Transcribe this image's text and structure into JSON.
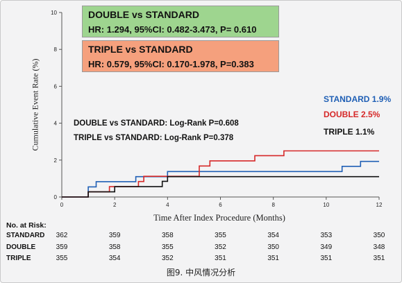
{
  "chart_data": {
    "type": "line",
    "subtype": "kaplan-meier-step",
    "xlabel": "Time After Index Procedure (Months)",
    "ylabel": "Cumulative Event Rate (%)",
    "xlim": [
      0,
      12
    ],
    "ylim": [
      0,
      10
    ],
    "x_ticks": [
      "0",
      "2",
      "4",
      "6",
      "8",
      "10",
      "12"
    ],
    "y_ticks": [
      "0",
      "2",
      "4",
      "6",
      "8",
      "10"
    ],
    "grid": false,
    "legend_position": "right",
    "series": [
      {
        "name": "STANDARD",
        "color": "#1f5fb5",
        "points": [
          [
            0,
            0
          ],
          [
            1.0,
            0
          ],
          [
            1.0,
            0.55
          ],
          [
            1.3,
            0.55
          ],
          [
            1.3,
            0.83
          ],
          [
            2.8,
            0.83
          ],
          [
            2.8,
            1.1
          ],
          [
            4.0,
            1.1
          ],
          [
            4.0,
            1.38
          ],
          [
            10.6,
            1.38
          ],
          [
            10.6,
            1.66
          ],
          [
            11.3,
            1.66
          ],
          [
            11.3,
            1.93
          ],
          [
            12,
            1.93
          ]
        ]
      },
      {
        "name": "DOUBLE",
        "color": "#d62828",
        "points": [
          [
            0,
            0
          ],
          [
            1.0,
            0
          ],
          [
            1.0,
            0.28
          ],
          [
            1.8,
            0.28
          ],
          [
            1.8,
            0.56
          ],
          [
            2.9,
            0.56
          ],
          [
            2.9,
            0.84
          ],
          [
            3.1,
            0.84
          ],
          [
            3.1,
            1.12
          ],
          [
            5.2,
            1.12
          ],
          [
            5.2,
            1.68
          ],
          [
            5.6,
            1.68
          ],
          [
            5.6,
            1.96
          ],
          [
            7.3,
            1.96
          ],
          [
            7.3,
            2.24
          ],
          [
            8.4,
            2.24
          ],
          [
            8.4,
            2.5
          ],
          [
            12,
            2.5
          ]
        ]
      },
      {
        "name": "TRIPLE",
        "color": "#111111",
        "points": [
          [
            0,
            0
          ],
          [
            1.0,
            0
          ],
          [
            1.0,
            0.28
          ],
          [
            2.0,
            0.28
          ],
          [
            2.0,
            0.56
          ],
          [
            3.8,
            0.56
          ],
          [
            3.8,
            0.85
          ],
          [
            4.0,
            0.85
          ],
          [
            4.0,
            1.1
          ],
          [
            12,
            1.1
          ]
        ]
      }
    ],
    "legend": [
      {
        "label": "STANDARD 1.9%",
        "color": "#1f5fb5"
      },
      {
        "label": "DOUBLE 2.5%",
        "color": "#d62828"
      },
      {
        "label": "TRIPLE 1.1%",
        "color": "#111111"
      }
    ],
    "annotations": {
      "box_double": {
        "title": "DOUBLE vs STANDARD",
        "hr": "HR: 1.294, 95%CI: 0.482-3.473, P= 0.610",
        "color": "#9ed58f"
      },
      "box_triple": {
        "title": "TRIPLE vs STANDARD",
        "hr": "HR: 0.579, 95%CI: 0.170-1.978, P=0.383",
        "color": "#f5a07d"
      },
      "logrank_double": "DOUBLE vs STANDARD: Log-Rank P=0.608",
      "logrank_triple": "TRIPLE vs STANDARD: Log-Rank P=0.378"
    },
    "risk_table": {
      "title": "No. at Risk:",
      "rows": [
        {
          "name": "STANDARD",
          "values": [
            "362",
            "359",
            "358",
            "355",
            "354",
            "353",
            "350"
          ]
        },
        {
          "name": "DOUBLE",
          "values": [
            "359",
            "358",
            "355",
            "352",
            "350",
            "349",
            "348"
          ]
        },
        {
          "name": "TRIPLE",
          "values": [
            "355",
            "354",
            "352",
            "351",
            "351",
            "351",
            "351"
          ]
        }
      ]
    }
  },
  "caption": "图9. 中风情况分析"
}
